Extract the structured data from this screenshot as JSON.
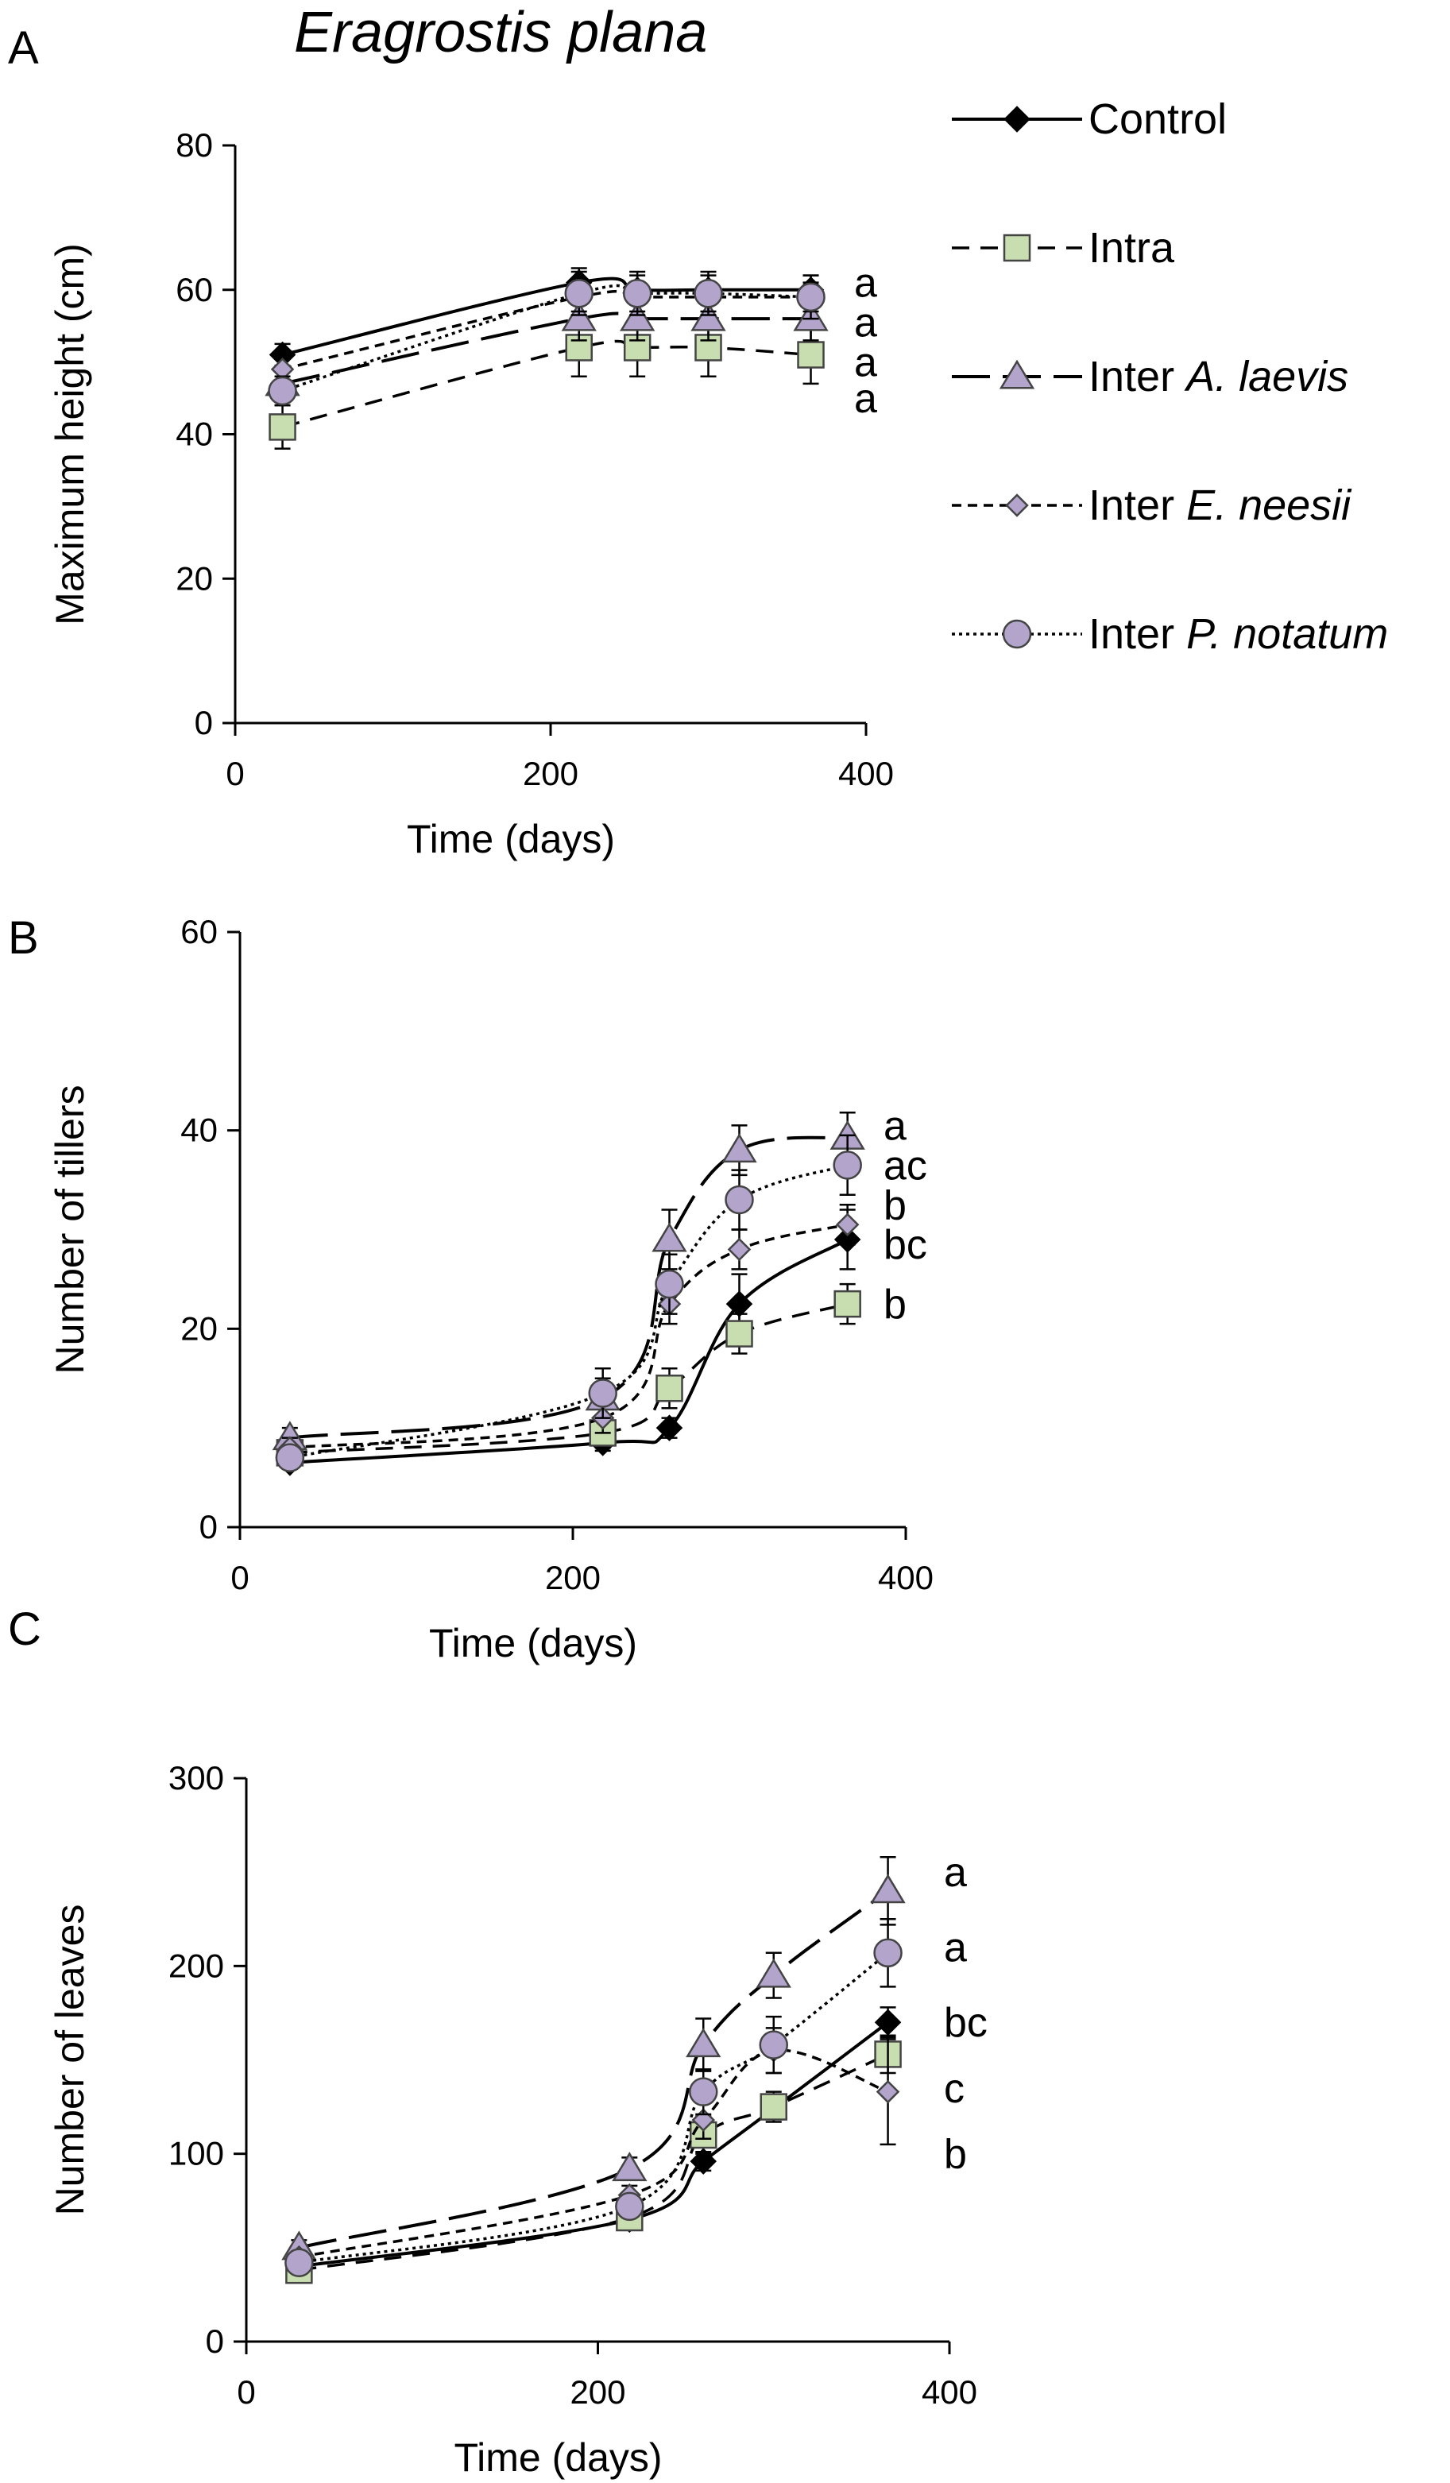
{
  "title": "Eragrostis plana",
  "colors": {
    "control": "#000000",
    "green_fill": "#c9deb0",
    "purple_fill": "#b3a4cc",
    "marker_stroke": "#444444"
  },
  "legend": {
    "position": "top-right",
    "entries": [
      {
        "key": "control",
        "text": "Control",
        "italic": ""
      },
      {
        "key": "intra",
        "text": "Intra",
        "italic": ""
      },
      {
        "key": "inter_al",
        "text": "Inter ",
        "italic": "A. laevis"
      },
      {
        "key": "inter_en",
        "text": "Inter ",
        "italic": "E. neesii"
      },
      {
        "key": "inter_pn",
        "text": "Inter ",
        "italic": "P. notatum"
      }
    ]
  },
  "chart_data": [
    {
      "panel": "A",
      "type": "line",
      "xlabel": "Time (days)",
      "ylabel": "Maximum height (cm)",
      "xlim": [
        0,
        400
      ],
      "ylim": [
        0,
        80
      ],
      "xticks": [
        0,
        200,
        400
      ],
      "yticks": [
        0,
        20,
        40,
        60,
        80
      ],
      "x": [
        30,
        218,
        255,
        300,
        365
      ],
      "series": [
        {
          "key": "control",
          "values": [
            51,
            61,
            60,
            60,
            60
          ],
          "err": [
            1.5,
            2,
            2,
            2,
            2
          ]
        },
        {
          "key": "intra",
          "values": [
            41,
            52,
            52,
            52,
            51
          ],
          "err": [
            3,
            4,
            4,
            4,
            4
          ]
        },
        {
          "key": "inter_al",
          "values": [
            47,
            56,
            56,
            56,
            56
          ],
          "err": [
            2,
            3,
            3,
            3,
            3
          ]
        },
        {
          "key": "inter_en",
          "values": [
            49,
            59,
            59,
            59,
            59
          ],
          "err": [
            2,
            2,
            2,
            2,
            2
          ]
        },
        {
          "key": "inter_pn",
          "values": [
            46,
            59.5,
            59.5,
            59.5,
            59
          ],
          "err": [
            2,
            3,
            3,
            3,
            3
          ]
        }
      ],
      "sig_labels": [
        {
          "text": "a",
          "y": 61
        },
        {
          "text": "a",
          "y": 55.5
        },
        {
          "text": "a",
          "y": 50
        },
        {
          "text": "a",
          "y": 45
        }
      ]
    },
    {
      "panel": "B",
      "type": "line",
      "xlabel": "Time (days)",
      "ylabel": "Number of tillers",
      "xlim": [
        0,
        400
      ],
      "ylim": [
        0,
        60
      ],
      "xticks": [
        0,
        200,
        400
      ],
      "yticks": [
        0,
        20,
        40,
        60
      ],
      "x": [
        30,
        218,
        258,
        300,
        365
      ],
      "series": [
        {
          "key": "control",
          "values": [
            6.5,
            8.5,
            10,
            22.5,
            29
          ],
          "err": [
            0.5,
            0.8,
            1,
            3,
            3
          ]
        },
        {
          "key": "intra",
          "values": [
            7.5,
            9.5,
            14,
            19.5,
            22.5
          ],
          "err": [
            0.8,
            1.5,
            2,
            2,
            2
          ]
        },
        {
          "key": "inter_al",
          "values": [
            9,
            13,
            29,
            38,
            39.3
          ],
          "err": [
            1,
            2,
            3,
            2.5,
            2.5
          ]
        },
        {
          "key": "inter_en",
          "values": [
            8,
            11,
            22.5,
            28,
            30.5
          ],
          "err": [
            1,
            1.5,
            2,
            2,
            2
          ]
        },
        {
          "key": "inter_pn",
          "values": [
            7,
            13.5,
            24.5,
            33,
            36.5
          ],
          "err": [
            1,
            2.5,
            3,
            3,
            3
          ]
        }
      ],
      "sig_labels": [
        {
          "text": "a",
          "y": 40.5
        },
        {
          "text": "ac",
          "y": 36.5
        },
        {
          "text": "b",
          "y": 32.5
        },
        {
          "text": "bc",
          "y": 28.5
        },
        {
          "text": "b",
          "y": 22.5
        }
      ]
    },
    {
      "panel": "C",
      "type": "line",
      "xlabel": "Time (days)",
      "ylabel": "Number of leaves",
      "xlim": [
        0,
        400
      ],
      "ylim": [
        0,
        300
      ],
      "xticks": [
        0,
        200,
        400
      ],
      "yticks": [
        0,
        100,
        200,
        300
      ],
      "x": [
        30,
        218,
        260,
        300,
        365
      ],
      "series": [
        {
          "key": "control",
          "values": [
            40,
            65,
            96,
            124,
            170
          ],
          "err": [
            3,
            4,
            5,
            5,
            8
          ]
        },
        {
          "key": "intra",
          "values": [
            38,
            66,
            110,
            125,
            153
          ],
          "err": [
            3,
            5,
            10,
            8,
            10
          ]
        },
        {
          "key": "inter_al",
          "values": [
            50,
            92,
            158,
            195,
            240
          ],
          "err": [
            4,
            6,
            14,
            12,
            18
          ]
        },
        {
          "key": "inter_en",
          "values": [
            45,
            78,
            118,
            155,
            133
          ],
          "err": [
            3,
            5,
            10,
            12,
            28
          ]
        },
        {
          "key": "inter_pn",
          "values": [
            42,
            72,
            133,
            158,
            207
          ],
          "err": [
            3,
            5,
            12,
            15,
            18
          ]
        }
      ],
      "sig_labels": [
        {
          "text": "a",
          "y": 250
        },
        {
          "text": "a",
          "y": 210
        },
        {
          "text": "bc",
          "y": 170
        },
        {
          "text": "c",
          "y": 135
        },
        {
          "text": "b",
          "y": 100
        }
      ]
    }
  ]
}
